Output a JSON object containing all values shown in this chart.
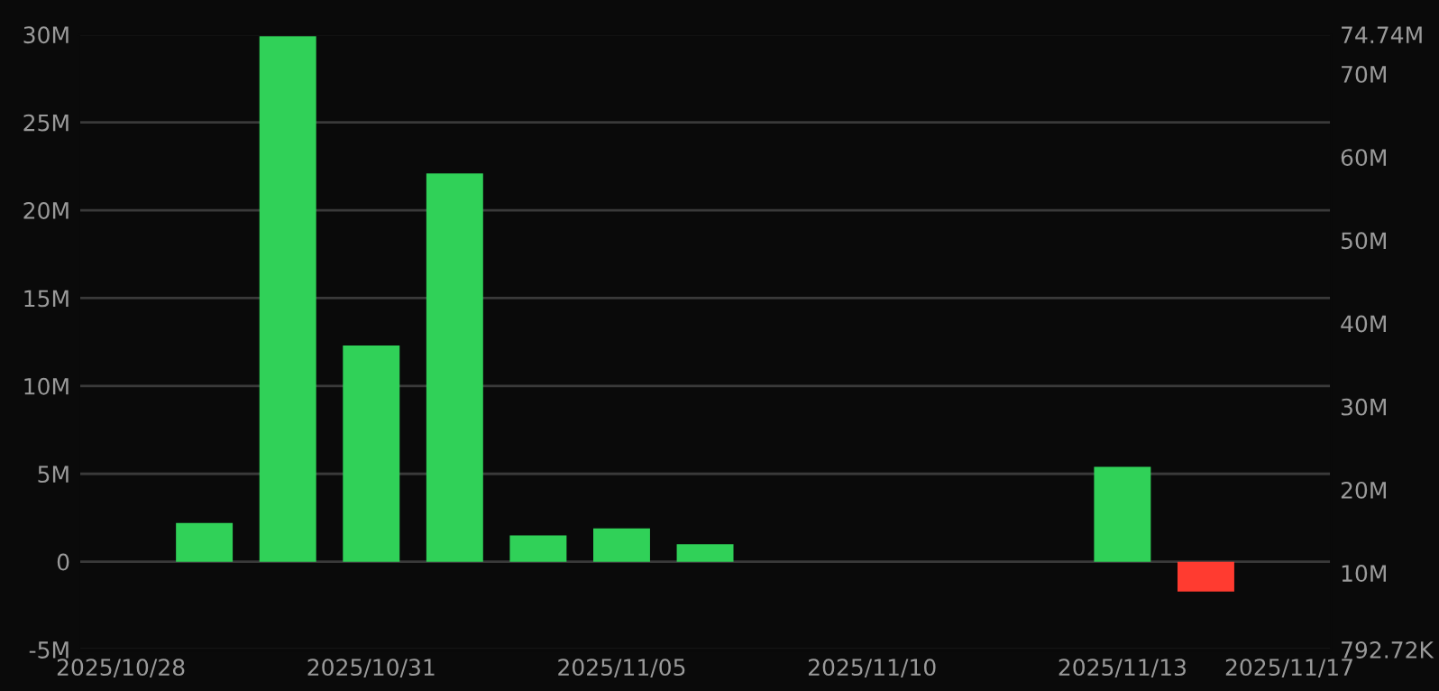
{
  "chart_data": {
    "type": "bar",
    "categories": [
      "2025/10/28",
      null,
      null,
      "2025/10/31",
      null,
      null,
      "2025/11/05",
      null,
      null,
      "2025/11/10",
      null,
      null,
      "2025/11/13",
      null,
      "2025/11/17"
    ],
    "values": [
      null,
      2200000,
      29900000,
      12300000,
      22100000,
      1500000,
      1900000,
      1000000,
      null,
      null,
      null,
      null,
      5400000,
      -1700000,
      null
    ],
    "colors": [
      "#30d158",
      "#30d158",
      "#30d158",
      "#30d158",
      "#30d158",
      "#30d158",
      "#30d158",
      "#30d158",
      "#30d158",
      "#30d158",
      "#30d158",
      "#30d158",
      "#30d158",
      "#ff3b30",
      "#30d158"
    ],
    "ylim": [
      -5000000,
      30000000
    ],
    "yticks": [
      {
        "value": -5000000,
        "label": "-5M"
      },
      {
        "value": 0,
        "label": "0"
      },
      {
        "value": 5000000,
        "label": "5M"
      },
      {
        "value": 10000000,
        "label": "10M"
      },
      {
        "value": 15000000,
        "label": "15M"
      },
      {
        "value": 20000000,
        "label": "20M"
      },
      {
        "value": 25000000,
        "label": "25M"
      },
      {
        "value": 30000000,
        "label": "30M"
      }
    ],
    "y2lim": [
      792720,
      74740000
    ],
    "y2ticks": [
      {
        "value": 792720,
        "label": "792.72K"
      },
      {
        "value": 10000000,
        "label": "10M"
      },
      {
        "value": 20000000,
        "label": "20M"
      },
      {
        "value": 30000000,
        "label": "30M"
      },
      {
        "value": 40000000,
        "label": "40M"
      },
      {
        "value": 50000000,
        "label": "50M"
      },
      {
        "value": 60000000,
        "label": "60M"
      },
      {
        "value": 70000000,
        "label": "70M"
      },
      {
        "value": 74740000,
        "label": "74.74M"
      }
    ],
    "grid": "y"
  }
}
